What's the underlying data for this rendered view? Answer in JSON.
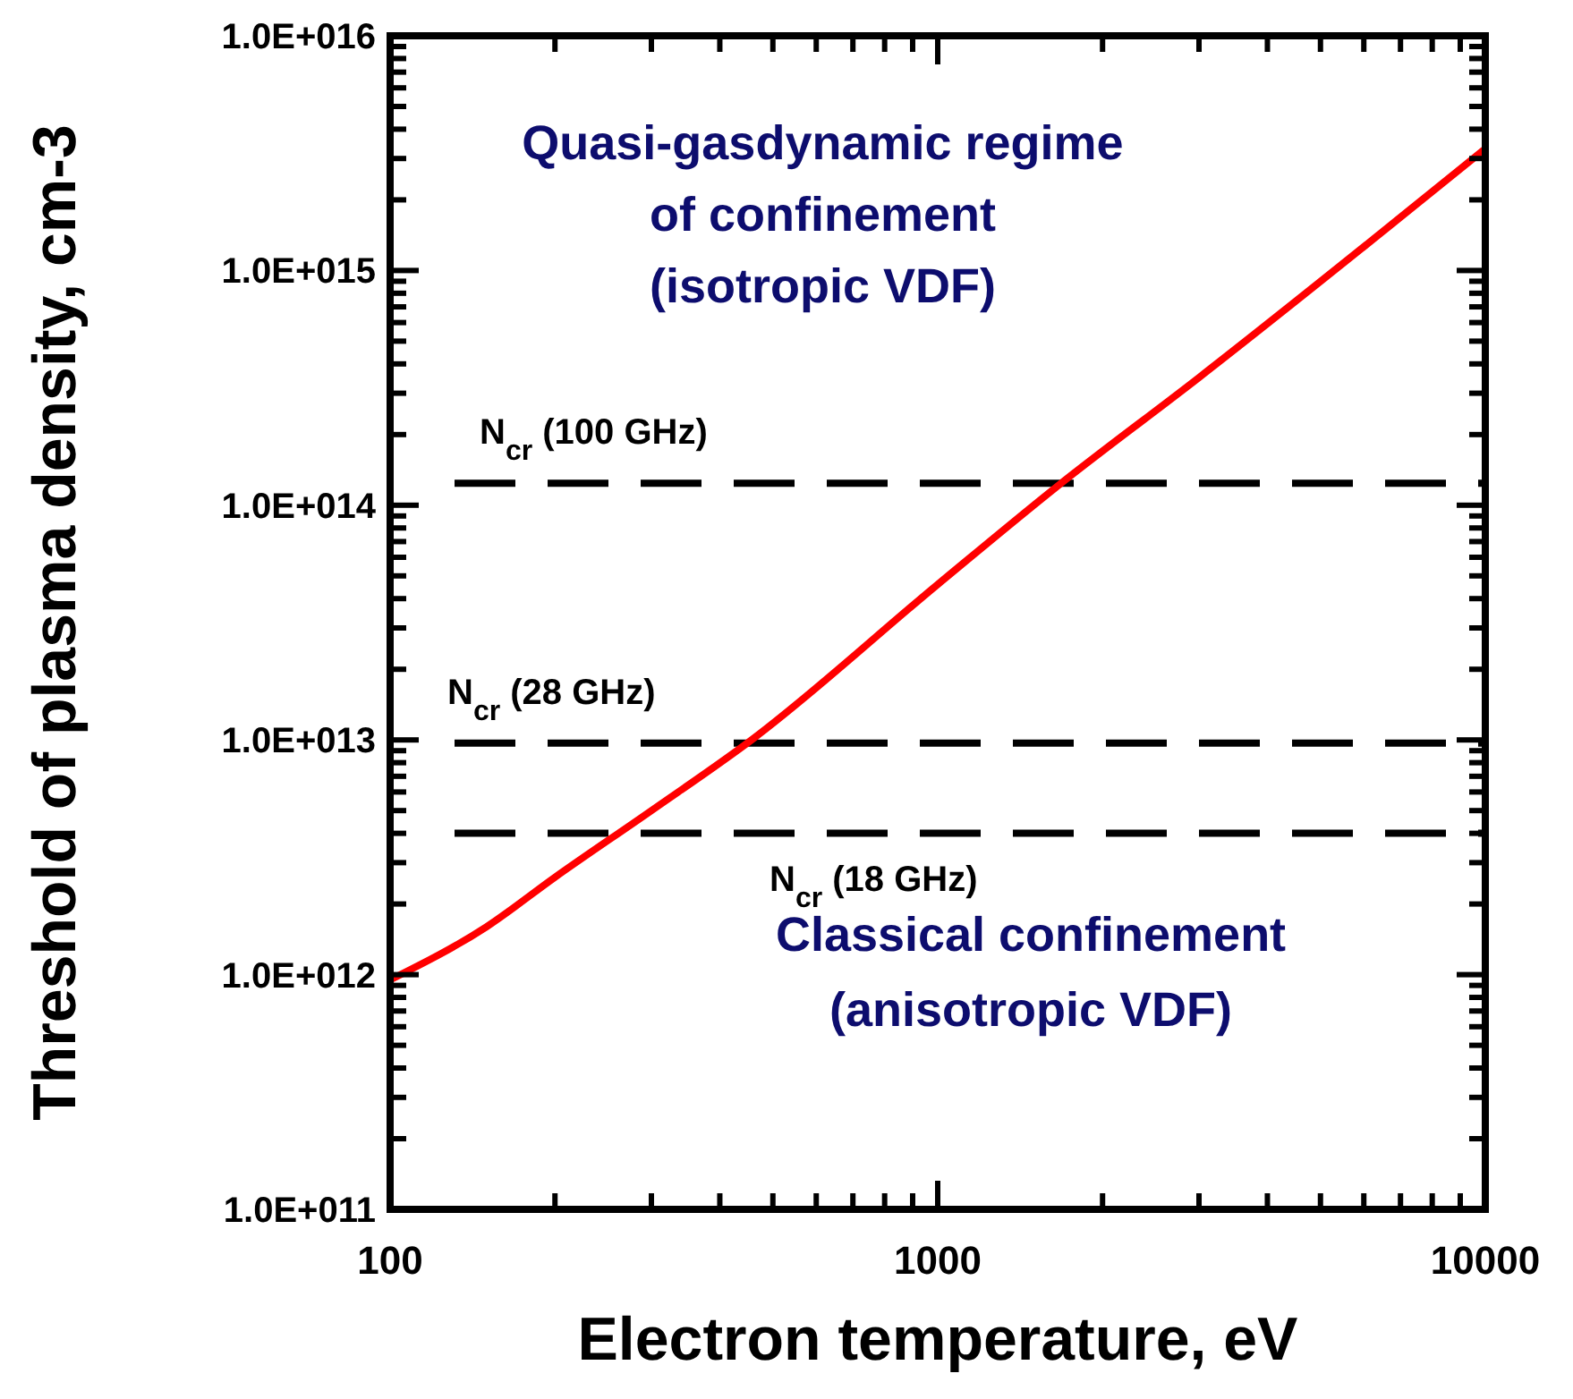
{
  "chart_data": {
    "type": "line",
    "xlabel": "Electron temperature, eV",
    "ylabel": "Threshold of plasma density, cm-3",
    "x": [
      100,
      150,
      200,
      300,
      457,
      1000,
      1650,
      3000,
      10000
    ],
    "series": [
      {
        "color": "#ff0000",
        "values": [
          950000000000.0,
          1600000000000.0,
          2600000000000.0,
          5000000000000.0,
          10000000000000.0,
          46000000000000.0,
          120000000000000.0,
          350000000000000.0,
          3300000000000000.0
        ]
      }
    ],
    "log": "xy",
    "xlim": [
      100,
      10000
    ],
    "ylim": [
      100000000000.0,
      1e+16
    ],
    "xticks": [
      100,
      {
        "value": 200,
        "label": null
      },
      {
        "value": 300,
        "label": null
      },
      {
        "value": 400,
        "label": null
      },
      {
        "value": 500,
        "label": null
      },
      {
        "value": 600,
        "label": null
      },
      {
        "value": 700,
        "label": null
      },
      {
        "value": 800,
        "label": null
      },
      {
        "value": 900,
        "label": null
      },
      1000,
      {
        "value": 2000,
        "label": null
      },
      {
        "value": 3000,
        "label": null
      },
      {
        "value": 4000,
        "label": null
      },
      {
        "value": 5000,
        "label": null
      },
      {
        "value": 6000,
        "label": null
      },
      {
        "value": 7000,
        "label": null
      },
      {
        "value": 8000,
        "label": null
      },
      {
        "value": 9000,
        "label": null
      },
      10000
    ],
    "yticks": [
      {
        "value": 100000000000.0,
        "label": "1.0E+011"
      },
      {
        "value": 200000000000.0,
        "label": null
      },
      {
        "value": 300000000000.0,
        "label": null
      },
      {
        "value": 400000000000.0,
        "label": null
      },
      {
        "value": 500000000000.0,
        "label": null
      },
      {
        "value": 600000000000.0,
        "label": null
      },
      {
        "value": 700000000000.0,
        "label": null
      },
      {
        "value": 800000000000.0,
        "label": null
      },
      {
        "value": 900000000000.0,
        "label": null
      },
      {
        "value": 1000000000000.0,
        "label": "1.0E+012"
      },
      {
        "value": 2000000000000.0,
        "label": null
      },
      {
        "value": 3000000000000.0,
        "label": null
      },
      {
        "value": 4000000000000.0,
        "label": null
      },
      {
        "value": 5000000000000.0,
        "label": null
      },
      {
        "value": 6000000000000.0,
        "label": null
      },
      {
        "value": 7000000000000.0,
        "label": null
      },
      {
        "value": 8000000000000.0,
        "label": null
      },
      {
        "value": 9000000000000.0,
        "label": null
      },
      {
        "value": 10000000000000.0,
        "label": "1.0E+013"
      },
      {
        "value": 20000000000000.0,
        "label": null
      },
      {
        "value": 30000000000000.0,
        "label": null
      },
      {
        "value": 40000000000000.0,
        "label": null
      },
      {
        "value": 50000000000000.0,
        "label": null
      },
      {
        "value": 60000000000000.0,
        "label": null
      },
      {
        "value": 70000000000000.0,
        "label": null
      },
      {
        "value": 80000000000000.0,
        "label": null
      },
      {
        "value": 90000000000000.0,
        "label": null
      },
      {
        "value": 100000000000000.0,
        "label": "1.0E+014"
      },
      {
        "value": 200000000000000.0,
        "label": null
      },
      {
        "value": 300000000000000.0,
        "label": null
      },
      {
        "value": 400000000000000.0,
        "label": null
      },
      {
        "value": 500000000000000.0,
        "label": null
      },
      {
        "value": 600000000000000.0,
        "label": null
      },
      {
        "value": 700000000000000.0,
        "label": null
      },
      {
        "value": 800000000000000.0,
        "label": null
      },
      {
        "value": 900000000000000.0,
        "label": null
      },
      {
        "value": 1000000000000000.0,
        "label": "1.0E+015"
      },
      {
        "value": 2000000000000000.0,
        "label": null
      },
      {
        "value": 3000000000000000.0,
        "label": null
      },
      {
        "value": 4000000000000000.0,
        "label": null
      },
      {
        "value": 5000000000000000.0,
        "label": null
      },
      {
        "value": 6000000000000000.0,
        "label": null
      },
      {
        "value": 7000000000000000.0,
        "label": null
      },
      {
        "value": 8000000000000000.0,
        "label": null
      },
      {
        "value": 9000000000000000.0,
        "label": null
      },
      {
        "value": 1e+16,
        "label": "1.0E+016"
      }
    ],
    "ref_lines": [
      {
        "axis": "y",
        "value": 124000000000000.0,
        "label": "N$_{cr}$ (100 GHz)",
        "color": "#000000",
        "line_style": "dashed"
      },
      {
        "axis": "y",
        "value": 9700000000000.0,
        "label": "N$_{cr}$ (28 GHz)",
        "color": "#000000",
        "line_style": "dashed"
      },
      {
        "axis": "y",
        "value": 4000000000000.0,
        "label": "N$_{cr}$ (18 GHz)",
        "color": "#000000",
        "line_style": "dashed"
      }
    ],
    "annotations": [
      "Quasi-gasdynamic regime\nof confinement\n(isotropic VDF)",
      "Classical confinement\n(anisotropic VDF)"
    ],
    "grid": false,
    "marker": "none",
    "line_style": "solid"
  }
}
